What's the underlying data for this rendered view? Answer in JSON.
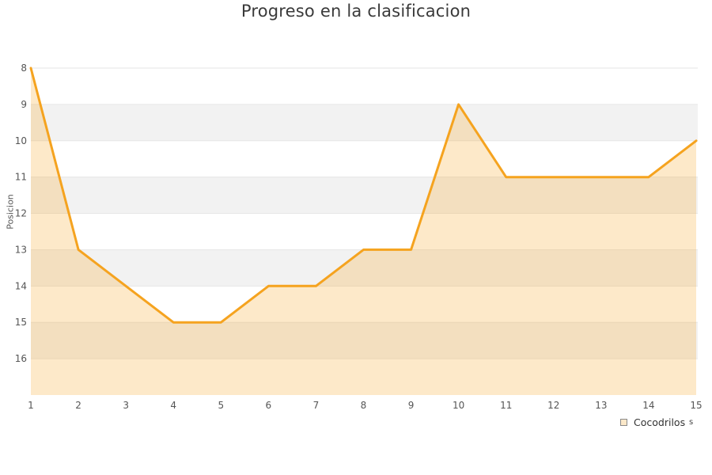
{
  "title": "Progreso en la clasificacion",
  "chart_data": {
    "type": "area",
    "title": "Progreso en la clasificacion",
    "xlabel": "",
    "ylabel": "Posicion",
    "x": [
      1,
      2,
      3,
      4,
      5,
      6,
      7,
      8,
      9,
      10,
      11,
      12,
      13,
      14,
      15
    ],
    "series": [
      {
        "name": "Cocodrilos",
        "values": [
          8,
          13,
          14,
          15,
          15,
          14,
          14,
          13,
          13,
          9,
          11,
          11,
          11,
          11,
          10
        ]
      }
    ],
    "x_ticks": [
      1,
      2,
      3,
      4,
      5,
      6,
      7,
      8,
      9,
      10,
      11,
      12,
      13,
      14,
      15
    ],
    "y_ticks": [
      8,
      9,
      10,
      11,
      12,
      13,
      14,
      15,
      16
    ],
    "xlim": [
      1,
      15
    ],
    "ylim": [
      8,
      17
    ],
    "y_inverted": true,
    "grid": "horizontal",
    "alternate_band_pairs": [
      [
        9,
        10
      ],
      [
        11,
        12
      ],
      [
        13,
        14
      ],
      [
        15,
        16
      ]
    ],
    "legend_position": "bottom-right"
  },
  "legend": {
    "label": "Cocodrilos"
  },
  "artifacts": {
    "clipped_text": "s"
  },
  "colors": {
    "line": "#F5A31F",
    "area_fill": "rgba(245,163,31,0.24)",
    "band": "#F2F2F2",
    "gridline": "#E6E6E6",
    "tick_text": "#555555",
    "title_text": "#3A3A3A",
    "legend_swatch_fill": "#FBE8C9",
    "legend_swatch_border": "#8A8A8A"
  }
}
